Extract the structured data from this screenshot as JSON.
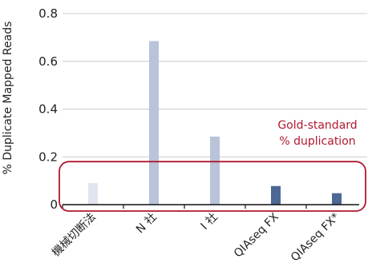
{
  "chart_data": {
    "type": "bar",
    "title": "",
    "xlabel": "",
    "ylabel": "% Duplicate Mapped Reads",
    "ylim": [
      0,
      0.8
    ],
    "yticks": [
      0,
      0.2,
      0.4,
      0.6,
      0.8
    ],
    "ytick_labels": [
      "0",
      "0.2",
      "0.4",
      "0.6",
      "0.8"
    ],
    "grid": true,
    "categories": [
      "機械切断法",
      "N 社",
      "I 社",
      "QIAseq FX",
      "QIAseq FX*"
    ],
    "values": [
      0.09,
      0.685,
      0.285,
      0.078,
      0.048
    ],
    "bar_colors": [
      "#e2e4ef",
      "#b9c3d9",
      "#b9c3d9",
      "#4d6894",
      "#4d6894"
    ],
    "annotation": {
      "lines": [
        "Gold-standard",
        "% duplication"
      ],
      "color": "#b0192e",
      "box_ymin": 0.0,
      "box_ymax": 0.16
    }
  }
}
